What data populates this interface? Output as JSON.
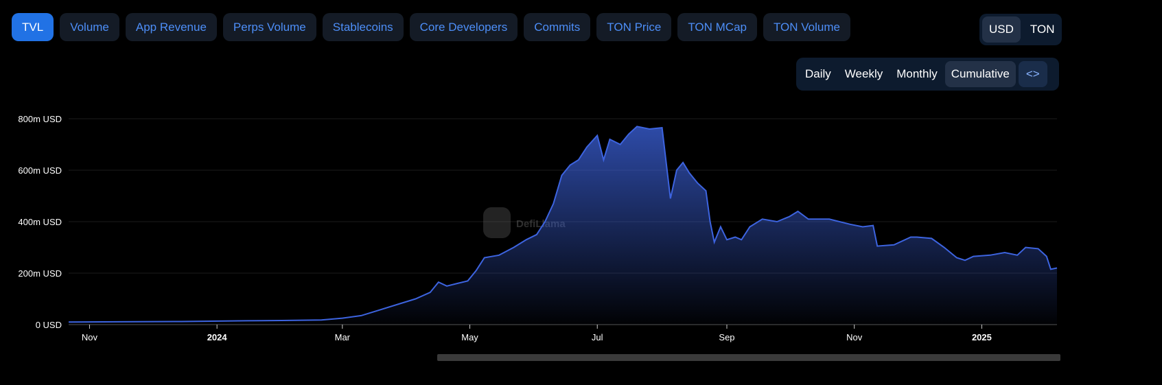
{
  "tabs": [
    "TVL",
    "Volume",
    "App Revenue",
    "Perps Volume",
    "Stablecoins",
    "Core Developers",
    "Commits",
    "TON Price",
    "TON MCap",
    "TON Volume"
  ],
  "active_tab": "TVL",
  "currency": {
    "options": [
      "USD",
      "TON"
    ],
    "selected": "USD"
  },
  "periods": {
    "options": [
      "Daily",
      "Weekly",
      "Monthly",
      "Cumulative"
    ],
    "selected": "Cumulative",
    "embed_icon": "code-icon",
    "embed_glyph": "<>"
  },
  "watermark": "DefiLlama",
  "chart_data": {
    "type": "area",
    "ylabel": "USD",
    "ylim": [
      0,
      800
    ],
    "y_ticks": [
      "0 USD",
      "200m USD",
      "400m USD",
      "600m USD",
      "800m USD"
    ],
    "y_tick_values": [
      0,
      200,
      400,
      600,
      800
    ],
    "x_ticks": [
      {
        "label": "Nov",
        "date": "2023-11-01"
      },
      {
        "label": "2024",
        "date": "2024-01-01",
        "bold": true
      },
      {
        "label": "Mar",
        "date": "2024-03-01"
      },
      {
        "label": "May",
        "date": "2024-05-01"
      },
      {
        "label": "Jul",
        "date": "2024-07-01"
      },
      {
        "label": "Sep",
        "date": "2024-09-01"
      },
      {
        "label": "Nov",
        "date": "2024-11-01"
      },
      {
        "label": "2025",
        "date": "2025-01-01",
        "bold": true
      }
    ],
    "xlim": [
      "2023-10-22",
      "2025-02-06"
    ],
    "color": "#3d64e0",
    "series": [
      {
        "name": "TVL (m USD)",
        "points": [
          [
            "2023-10-22",
            10
          ],
          [
            "2023-11-15",
            11
          ],
          [
            "2023-12-15",
            12
          ],
          [
            "2024-01-15",
            15
          ],
          [
            "2024-02-01",
            16
          ],
          [
            "2024-02-20",
            18
          ],
          [
            "2024-03-01",
            25
          ],
          [
            "2024-03-10",
            35
          ],
          [
            "2024-03-18",
            55
          ],
          [
            "2024-03-28",
            80
          ],
          [
            "2024-04-05",
            100
          ],
          [
            "2024-04-12",
            125
          ],
          [
            "2024-04-16",
            165
          ],
          [
            "2024-04-20",
            150
          ],
          [
            "2024-04-25",
            160
          ],
          [
            "2024-04-30",
            170
          ],
          [
            "2024-05-04",
            210
          ],
          [
            "2024-05-08",
            260
          ],
          [
            "2024-05-15",
            270
          ],
          [
            "2024-05-22",
            300
          ],
          [
            "2024-05-28",
            330
          ],
          [
            "2024-06-02",
            350
          ],
          [
            "2024-06-06",
            400
          ],
          [
            "2024-06-10",
            470
          ],
          [
            "2024-06-14",
            580
          ],
          [
            "2024-06-18",
            620
          ],
          [
            "2024-06-22",
            640
          ],
          [
            "2024-06-26",
            690
          ],
          [
            "2024-07-01",
            735
          ],
          [
            "2024-07-04",
            640
          ],
          [
            "2024-07-07",
            720
          ],
          [
            "2024-07-12",
            700
          ],
          [
            "2024-07-16",
            740
          ],
          [
            "2024-07-20",
            770
          ],
          [
            "2024-07-26",
            760
          ],
          [
            "2024-08-01",
            765
          ],
          [
            "2024-08-05",
            490
          ],
          [
            "2024-08-08",
            600
          ],
          [
            "2024-08-11",
            630
          ],
          [
            "2024-08-14",
            590
          ],
          [
            "2024-08-18",
            550
          ],
          [
            "2024-08-22",
            520
          ],
          [
            "2024-08-24",
            400
          ],
          [
            "2024-08-26",
            320
          ],
          [
            "2024-08-29",
            380
          ],
          [
            "2024-09-01",
            330
          ],
          [
            "2024-09-05",
            340
          ],
          [
            "2024-09-08",
            330
          ],
          [
            "2024-09-12",
            380
          ],
          [
            "2024-09-18",
            410
          ],
          [
            "2024-09-25",
            400
          ],
          [
            "2024-10-01",
            420
          ],
          [
            "2024-10-05",
            440
          ],
          [
            "2024-10-10",
            410
          ],
          [
            "2024-10-20",
            410
          ],
          [
            "2024-10-30",
            390
          ],
          [
            "2024-11-05",
            380
          ],
          [
            "2024-11-10",
            385
          ],
          [
            "2024-11-12",
            305
          ],
          [
            "2024-11-20",
            310
          ],
          [
            "2024-11-28",
            340
          ],
          [
            "2024-12-01",
            340
          ],
          [
            "2024-12-08",
            335
          ],
          [
            "2024-12-14",
            300
          ],
          [
            "2024-12-20",
            260
          ],
          [
            "2024-12-24",
            250
          ],
          [
            "2024-12-28",
            265
          ],
          [
            "2025-01-05",
            270
          ],
          [
            "2025-01-12",
            280
          ],
          [
            "2025-01-18",
            270
          ],
          [
            "2025-01-22",
            300
          ],
          [
            "2025-01-28",
            295
          ],
          [
            "2025-02-01",
            265
          ],
          [
            "2025-02-03",
            215
          ],
          [
            "2025-02-06",
            220
          ]
        ]
      }
    ]
  }
}
